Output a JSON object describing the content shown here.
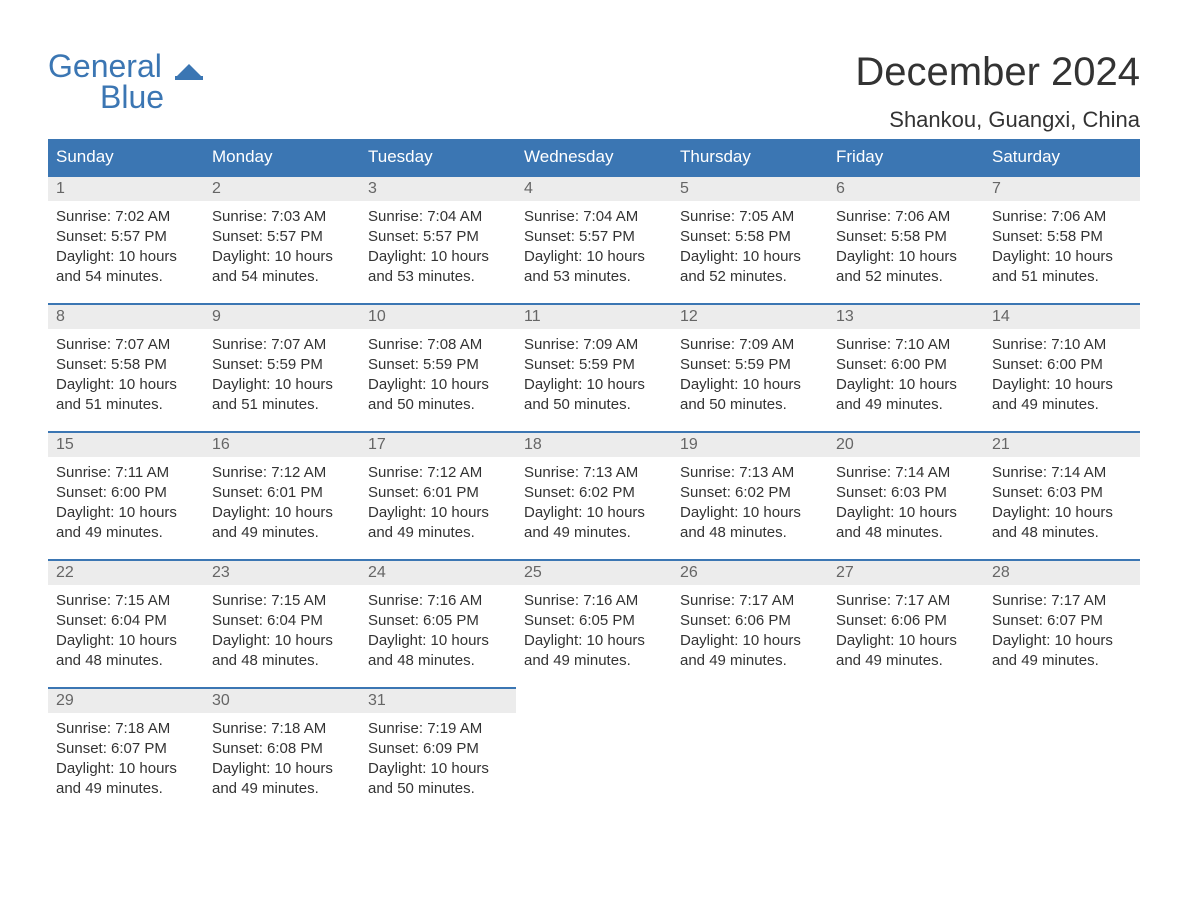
{
  "logo": {
    "top": "General",
    "bottom": "Blue"
  },
  "title": "December 2024",
  "location": "Shankou, Guangxi, China",
  "colors": {
    "header_bg": "#3b76b3",
    "header_text": "#ffffff",
    "daynum_bg": "#ececec",
    "daynum_text": "#666666",
    "body_text": "#333333",
    "row_border": "#3b76b3",
    "background": "#ffffff"
  },
  "day_headers": [
    "Sunday",
    "Monday",
    "Tuesday",
    "Wednesday",
    "Thursday",
    "Friday",
    "Saturday"
  ],
  "weeks": [
    [
      {
        "day": "1",
        "sunrise": "Sunrise: 7:02 AM",
        "sunset": "Sunset: 5:57 PM",
        "daylight1": "Daylight: 10 hours",
        "daylight2": "and 54 minutes."
      },
      {
        "day": "2",
        "sunrise": "Sunrise: 7:03 AM",
        "sunset": "Sunset: 5:57 PM",
        "daylight1": "Daylight: 10 hours",
        "daylight2": "and 54 minutes."
      },
      {
        "day": "3",
        "sunrise": "Sunrise: 7:04 AM",
        "sunset": "Sunset: 5:57 PM",
        "daylight1": "Daylight: 10 hours",
        "daylight2": "and 53 minutes."
      },
      {
        "day": "4",
        "sunrise": "Sunrise: 7:04 AM",
        "sunset": "Sunset: 5:57 PM",
        "daylight1": "Daylight: 10 hours",
        "daylight2": "and 53 minutes."
      },
      {
        "day": "5",
        "sunrise": "Sunrise: 7:05 AM",
        "sunset": "Sunset: 5:58 PM",
        "daylight1": "Daylight: 10 hours",
        "daylight2": "and 52 minutes."
      },
      {
        "day": "6",
        "sunrise": "Sunrise: 7:06 AM",
        "sunset": "Sunset: 5:58 PM",
        "daylight1": "Daylight: 10 hours",
        "daylight2": "and 52 minutes."
      },
      {
        "day": "7",
        "sunrise": "Sunrise: 7:06 AM",
        "sunset": "Sunset: 5:58 PM",
        "daylight1": "Daylight: 10 hours",
        "daylight2": "and 51 minutes."
      }
    ],
    [
      {
        "day": "8",
        "sunrise": "Sunrise: 7:07 AM",
        "sunset": "Sunset: 5:58 PM",
        "daylight1": "Daylight: 10 hours",
        "daylight2": "and 51 minutes."
      },
      {
        "day": "9",
        "sunrise": "Sunrise: 7:07 AM",
        "sunset": "Sunset: 5:59 PM",
        "daylight1": "Daylight: 10 hours",
        "daylight2": "and 51 minutes."
      },
      {
        "day": "10",
        "sunrise": "Sunrise: 7:08 AM",
        "sunset": "Sunset: 5:59 PM",
        "daylight1": "Daylight: 10 hours",
        "daylight2": "and 50 minutes."
      },
      {
        "day": "11",
        "sunrise": "Sunrise: 7:09 AM",
        "sunset": "Sunset: 5:59 PM",
        "daylight1": "Daylight: 10 hours",
        "daylight2": "and 50 minutes."
      },
      {
        "day": "12",
        "sunrise": "Sunrise: 7:09 AM",
        "sunset": "Sunset: 5:59 PM",
        "daylight1": "Daylight: 10 hours",
        "daylight2": "and 50 minutes."
      },
      {
        "day": "13",
        "sunrise": "Sunrise: 7:10 AM",
        "sunset": "Sunset: 6:00 PM",
        "daylight1": "Daylight: 10 hours",
        "daylight2": "and 49 minutes."
      },
      {
        "day": "14",
        "sunrise": "Sunrise: 7:10 AM",
        "sunset": "Sunset: 6:00 PM",
        "daylight1": "Daylight: 10 hours",
        "daylight2": "and 49 minutes."
      }
    ],
    [
      {
        "day": "15",
        "sunrise": "Sunrise: 7:11 AM",
        "sunset": "Sunset: 6:00 PM",
        "daylight1": "Daylight: 10 hours",
        "daylight2": "and 49 minutes."
      },
      {
        "day": "16",
        "sunrise": "Sunrise: 7:12 AM",
        "sunset": "Sunset: 6:01 PM",
        "daylight1": "Daylight: 10 hours",
        "daylight2": "and 49 minutes."
      },
      {
        "day": "17",
        "sunrise": "Sunrise: 7:12 AM",
        "sunset": "Sunset: 6:01 PM",
        "daylight1": "Daylight: 10 hours",
        "daylight2": "and 49 minutes."
      },
      {
        "day": "18",
        "sunrise": "Sunrise: 7:13 AM",
        "sunset": "Sunset: 6:02 PM",
        "daylight1": "Daylight: 10 hours",
        "daylight2": "and 49 minutes."
      },
      {
        "day": "19",
        "sunrise": "Sunrise: 7:13 AM",
        "sunset": "Sunset: 6:02 PM",
        "daylight1": "Daylight: 10 hours",
        "daylight2": "and 48 minutes."
      },
      {
        "day": "20",
        "sunrise": "Sunrise: 7:14 AM",
        "sunset": "Sunset: 6:03 PM",
        "daylight1": "Daylight: 10 hours",
        "daylight2": "and 48 minutes."
      },
      {
        "day": "21",
        "sunrise": "Sunrise: 7:14 AM",
        "sunset": "Sunset: 6:03 PM",
        "daylight1": "Daylight: 10 hours",
        "daylight2": "and 48 minutes."
      }
    ],
    [
      {
        "day": "22",
        "sunrise": "Sunrise: 7:15 AM",
        "sunset": "Sunset: 6:04 PM",
        "daylight1": "Daylight: 10 hours",
        "daylight2": "and 48 minutes."
      },
      {
        "day": "23",
        "sunrise": "Sunrise: 7:15 AM",
        "sunset": "Sunset: 6:04 PM",
        "daylight1": "Daylight: 10 hours",
        "daylight2": "and 48 minutes."
      },
      {
        "day": "24",
        "sunrise": "Sunrise: 7:16 AM",
        "sunset": "Sunset: 6:05 PM",
        "daylight1": "Daylight: 10 hours",
        "daylight2": "and 48 minutes."
      },
      {
        "day": "25",
        "sunrise": "Sunrise: 7:16 AM",
        "sunset": "Sunset: 6:05 PM",
        "daylight1": "Daylight: 10 hours",
        "daylight2": "and 49 minutes."
      },
      {
        "day": "26",
        "sunrise": "Sunrise: 7:17 AM",
        "sunset": "Sunset: 6:06 PM",
        "daylight1": "Daylight: 10 hours",
        "daylight2": "and 49 minutes."
      },
      {
        "day": "27",
        "sunrise": "Sunrise: 7:17 AM",
        "sunset": "Sunset: 6:06 PM",
        "daylight1": "Daylight: 10 hours",
        "daylight2": "and 49 minutes."
      },
      {
        "day": "28",
        "sunrise": "Sunrise: 7:17 AM",
        "sunset": "Sunset: 6:07 PM",
        "daylight1": "Daylight: 10 hours",
        "daylight2": "and 49 minutes."
      }
    ],
    [
      {
        "day": "29",
        "sunrise": "Sunrise: 7:18 AM",
        "sunset": "Sunset: 6:07 PM",
        "daylight1": "Daylight: 10 hours",
        "daylight2": "and 49 minutes."
      },
      {
        "day": "30",
        "sunrise": "Sunrise: 7:18 AM",
        "sunset": "Sunset: 6:08 PM",
        "daylight1": "Daylight: 10 hours",
        "daylight2": "and 49 minutes."
      },
      {
        "day": "31",
        "sunrise": "Sunrise: 7:19 AM",
        "sunset": "Sunset: 6:09 PM",
        "daylight1": "Daylight: 10 hours",
        "daylight2": "and 50 minutes."
      },
      {
        "empty": true
      },
      {
        "empty": true
      },
      {
        "empty": true
      },
      {
        "empty": true
      }
    ]
  ]
}
